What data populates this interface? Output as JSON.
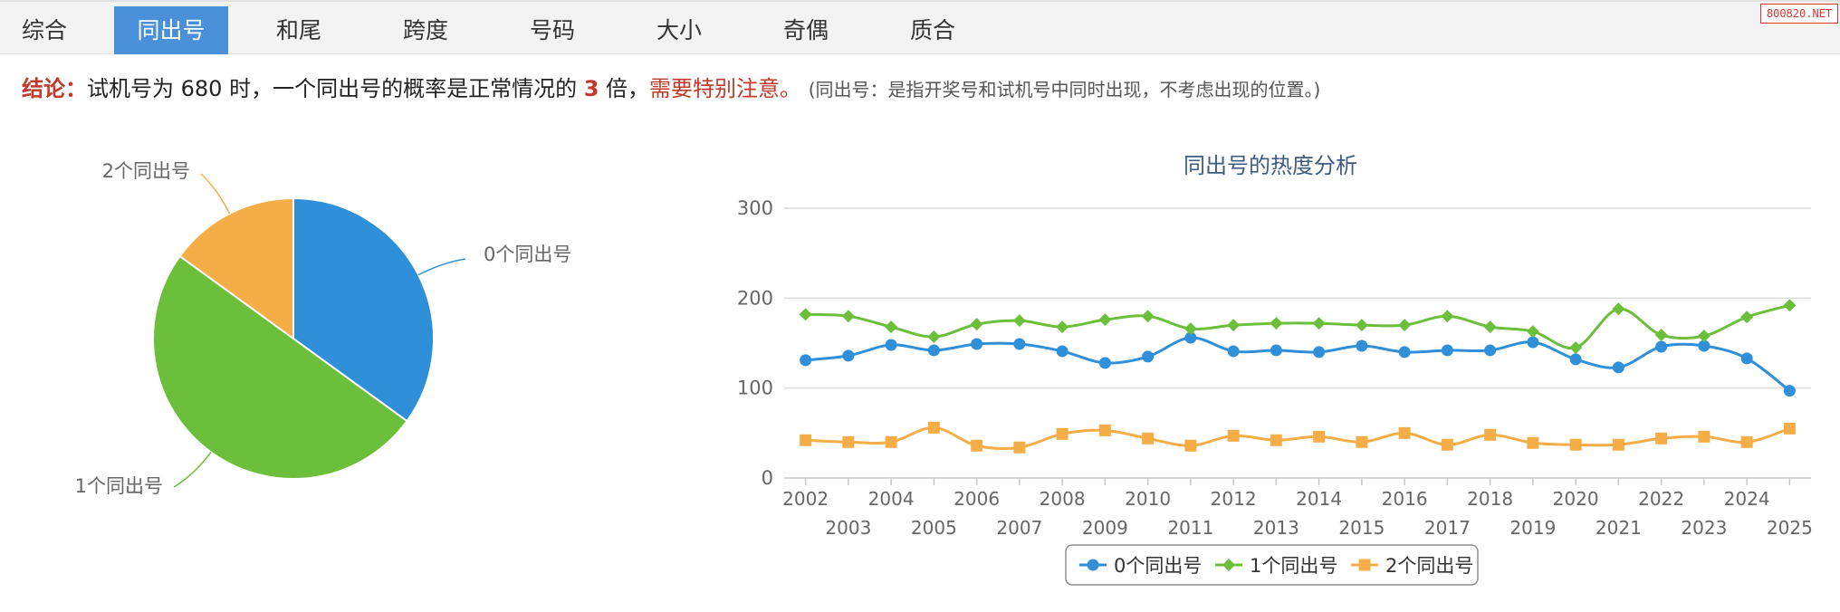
{
  "tabs": [
    "综合",
    "同出号",
    "和尾",
    "跨度",
    "号码",
    "大小",
    "奇偶",
    "质合"
  ],
  "active_tab_index": 1,
  "watermark": "800820.NET",
  "conclusion": {
    "label": "结论：",
    "text_before": "试机号为 680 时，一个同出号的概率是正常情况的 ",
    "multiple": "3",
    "text_after": " 倍，",
    "warning": "需要特别注意。",
    "note": "(同出号：是指开奖号和试机号中同时出现，不考虑出现的位置。)"
  },
  "colors": {
    "series0": "#2f8fd8",
    "series1": "#6cbf3a",
    "series2": "#f5ad47",
    "active_tab": "#4a90d9",
    "warning": "#c0392b"
  },
  "chart_data": [
    {
      "type": "pie",
      "slices": [
        {
          "label": "0个同出号",
          "value": 35
        },
        {
          "label": "1个同出号",
          "value": 50
        },
        {
          "label": "2个同出号",
          "value": 15
        }
      ]
    },
    {
      "type": "line",
      "title": "同出号的热度分析",
      "x": [
        "2002",
        "2003",
        "2004",
        "2005",
        "2006",
        "2007",
        "2008",
        "2009",
        "2010",
        "2011",
        "2012",
        "2013",
        "2014",
        "2015",
        "2016",
        "2017",
        "2018",
        "2019",
        "2020",
        "2021",
        "2022",
        "2023",
        "2024",
        "2025"
      ],
      "ylim": [
        0,
        300
      ],
      "yticks": [
        0,
        100,
        200,
        300
      ],
      "legend": "bottom",
      "series": [
        {
          "name": "0个同出号",
          "marker": "circle",
          "values": [
            131,
            136,
            148,
            142,
            149,
            149,
            141,
            128,
            135,
            156,
            141,
            142,
            140,
            147,
            140,
            142,
            142,
            151,
            132,
            123,
            146,
            147,
            133,
            97
          ]
        },
        {
          "name": "1个同出号",
          "marker": "diamond",
          "values": [
            182,
            180,
            168,
            157,
            171,
            175,
            168,
            176,
            180,
            166,
            170,
            172,
            172,
            170,
            170,
            180,
            168,
            163,
            145,
            188,
            159,
            158,
            179,
            192
          ]
        },
        {
          "name": "2个同出号",
          "marker": "square",
          "values": [
            42,
            40,
            40,
            56,
            36,
            34,
            49,
            53,
            44,
            36,
            47,
            42,
            46,
            40,
            50,
            37,
            48,
            39,
            37,
            37,
            44,
            46,
            40,
            55
          ]
        }
      ]
    }
  ]
}
